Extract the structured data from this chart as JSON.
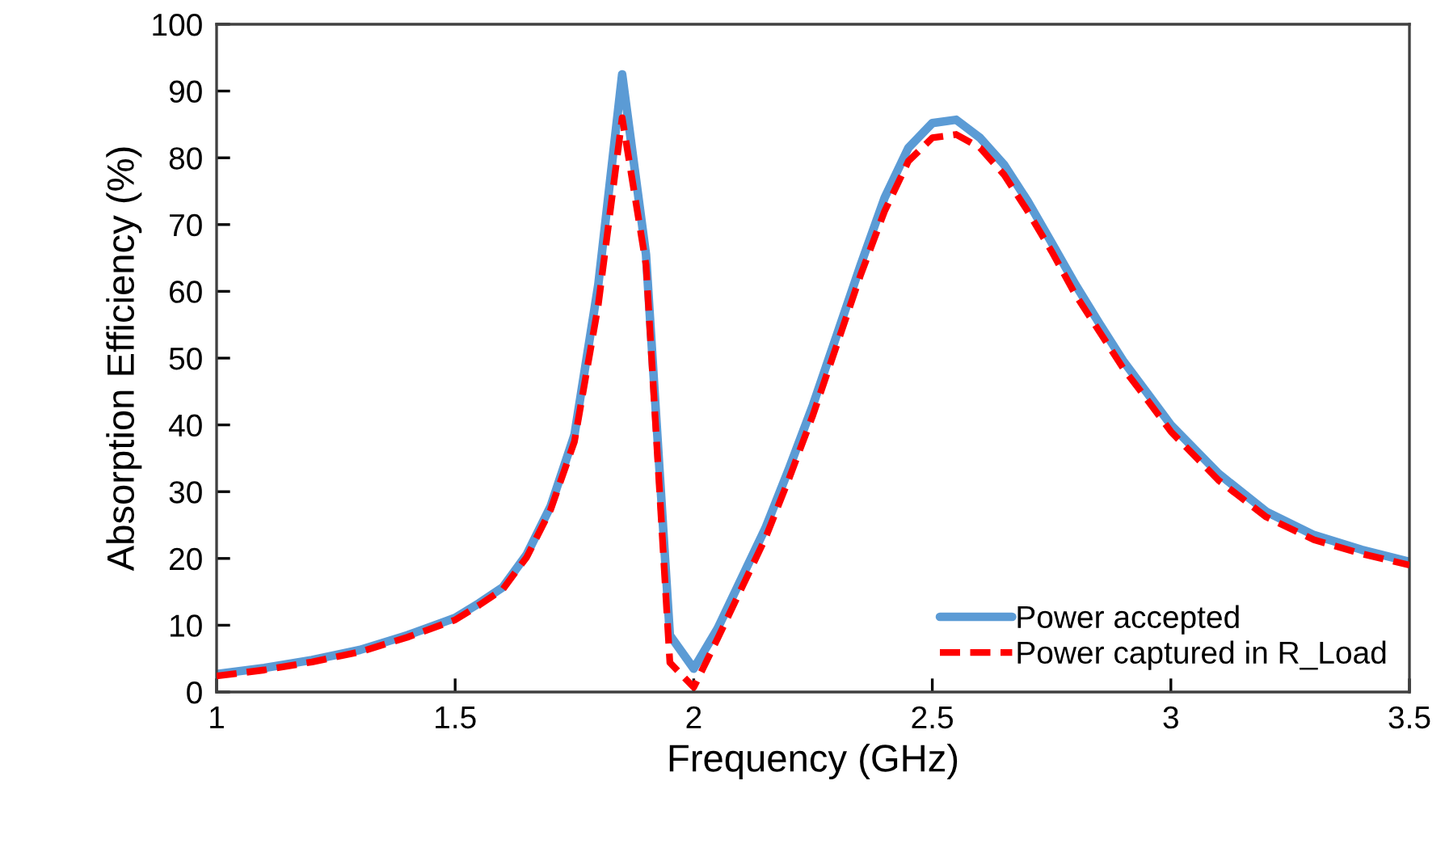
{
  "chart_data": {
    "type": "line",
    "xlabel": "Frequency (GHz)",
    "ylabel": "Absorption Efficiency (%)",
    "x": [
      1.0,
      1.1,
      1.2,
      1.3,
      1.4,
      1.5,
      1.55,
      1.6,
      1.65,
      1.7,
      1.75,
      1.8,
      1.85,
      1.9,
      1.95,
      2.0,
      2.05,
      2.1,
      2.15,
      2.2,
      2.25,
      2.3,
      2.35,
      2.4,
      2.45,
      2.5,
      2.55,
      2.6,
      2.65,
      2.7,
      2.75,
      2.8,
      2.85,
      2.9,
      2.95,
      3.0,
      3.1,
      3.2,
      3.3,
      3.4,
      3.5
    ],
    "series": [
      {
        "name": "Power accepted",
        "color": "#5b9bd5",
        "line_style": "solid",
        "values": [
          2.7,
          3.6,
          4.8,
          6.3,
          8.5,
          11.1,
          13.3,
          15.7,
          20.6,
          27.8,
          38.5,
          61,
          92.5,
          65.5,
          8.5,
          3.5,
          9.5,
          17,
          24.5,
          33.5,
          43,
          53.5,
          64,
          74,
          81.5,
          85.2,
          85.7,
          83,
          79,
          73.5,
          67.3,
          61,
          55.2,
          49.6,
          44.8,
          40,
          32.7,
          27,
          23.5,
          21.3,
          19.5
        ]
      },
      {
        "name": "Power captured in R_Load",
        "color": "#ff0000",
        "line_style": "dashed",
        "values": [
          2.4,
          3.3,
          4.5,
          6,
          8.2,
          10.8,
          13,
          15.4,
          20.2,
          27.3,
          37.5,
          58,
          86,
          64,
          4.4,
          0.7,
          8,
          15.5,
          23,
          32,
          41.5,
          52,
          62.5,
          72,
          79.5,
          83,
          83.5,
          81.5,
          77.5,
          72,
          66,
          59.5,
          54,
          48.5,
          43.8,
          39,
          31.7,
          26.2,
          22.8,
          20.7,
          19
        ]
      }
    ],
    "xlim": [
      1,
      3.5
    ],
    "xticks": [
      1,
      1.5,
      2,
      2.5,
      3,
      3.5
    ],
    "ylim": [
      0,
      100
    ],
    "yticks": [
      0,
      10,
      20,
      30,
      40,
      50,
      60,
      70,
      80,
      90,
      100
    ],
    "grid": false,
    "legend": "bottom right",
    "marker": "none"
  }
}
